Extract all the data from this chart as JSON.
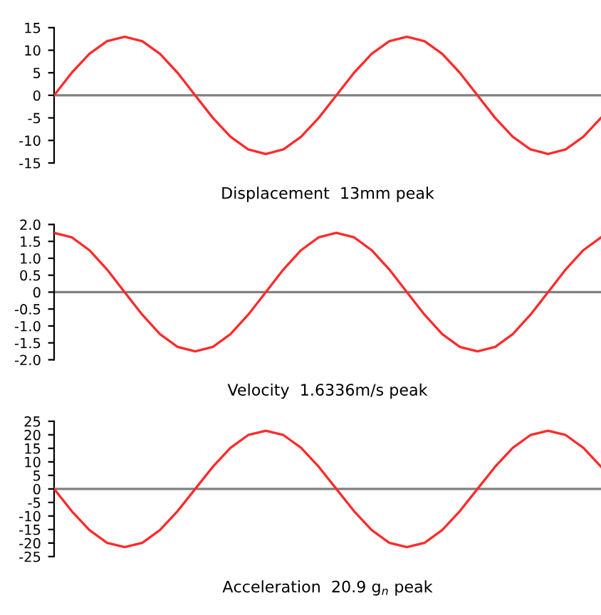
{
  "chart_data": [
    {
      "type": "line",
      "xlabel": "Displacement  13mm peak",
      "categories": [
        null,
        null,
        null,
        null,
        null,
        null,
        null,
        null,
        null,
        null,
        null,
        null,
        null,
        null,
        null,
        null,
        null,
        null,
        null,
        null,
        null,
        null,
        null,
        null,
        null,
        null,
        null,
        null,
        null,
        null,
        null,
        null
      ],
      "series": [
        {
          "color": "#ff2a2a",
          "values": [
            0,
            5.0,
            9.2,
            12.0,
            13,
            12.0,
            9.2,
            5.0,
            0,
            -5.0,
            -9.2,
            -12.0,
            -13,
            -12.0,
            -9.2,
            -5.0,
            0,
            5.0,
            9.2,
            12.0,
            13,
            12.0,
            9.2,
            5.0,
            0,
            -5.0,
            -9.2,
            -12.0,
            -13,
            -12.0,
            -9.2,
            -5.0
          ]
        }
      ],
      "ylim": [
        -15,
        15
      ],
      "yticks": [
        -15,
        -10,
        -5,
        0,
        5,
        10,
        15
      ],
      "tick_labels": "y",
      "grid": false,
      "marker": "none",
      "line_style": "solid",
      "ref_lines": [
        {
          "axis": "y",
          "value": 0,
          "color": "#808080"
        }
      ]
    },
    {
      "type": "line",
      "xlabel": "Velocity  1.6336m/s peak",
      "categories": [
        null,
        null,
        null,
        null,
        null,
        null,
        null,
        null,
        null,
        null,
        null,
        null,
        null,
        null,
        null,
        null,
        null,
        null,
        null,
        null,
        null,
        null,
        null,
        null,
        null,
        null,
        null,
        null,
        null,
        null,
        null,
        null
      ],
      "series": [
        {
          "color": "#ff2a2a",
          "values": [
            1.75,
            1.62,
            1.24,
            0.67,
            0,
            -0.67,
            -1.24,
            -1.62,
            -1.75,
            -1.62,
            -1.24,
            -0.67,
            0,
            0.67,
            1.24,
            1.62,
            1.75,
            1.62,
            1.24,
            0.67,
            0,
            -0.67,
            -1.24,
            -1.62,
            -1.75,
            -1.62,
            -1.24,
            -0.67,
            0,
            0.67,
            1.24,
            1.62
          ]
        }
      ],
      "ylim": [
        -2.0,
        2.0
      ],
      "yticks": [
        {
          "value": -2,
          "label": "-2.0"
        },
        {
          "value": -1.5,
          "label": "-1.5"
        },
        {
          "value": -1,
          "label": "-1.0"
        },
        {
          "value": -0.5,
          "label": "-0.5"
        },
        0,
        0.5,
        {
          "value": 1,
          "label": "1.0"
        },
        1.5,
        {
          "value": 2,
          "label": "2.0"
        }
      ],
      "tick_labels": "y",
      "grid": false,
      "marker": "none",
      "line_style": "solid",
      "ref_lines": [
        {
          "axis": "y",
          "value": 0,
          "color": "#808080"
        }
      ]
    },
    {
      "type": "line",
      "xlabel": "Acceleration  20.9 g$_{n}$ peak",
      "categories": [
        null,
        null,
        null,
        null,
        null,
        null,
        null,
        null,
        null,
        null,
        null,
        null,
        null,
        null,
        null,
        null,
        null,
        null,
        null,
        null,
        null,
        null,
        null,
        null,
        null,
        null,
        null,
        null,
        null,
        null,
        null,
        null
      ],
      "series": [
        {
          "color": "#ff2a2a",
          "values": [
            0,
            -8.2,
            -15.2,
            -19.9,
            -21.5,
            -19.9,
            -15.2,
            -8.2,
            0,
            8.2,
            15.2,
            19.9,
            21.5,
            19.9,
            15.2,
            8.2,
            0,
            -8.2,
            -15.2,
            -19.9,
            -21.5,
            -19.9,
            -15.2,
            -8.2,
            0,
            8.2,
            15.2,
            19.9,
            21.5,
            19.9,
            15.2,
            8.2
          ]
        }
      ],
      "ylim": [
        -25,
        25
      ],
      "yticks": [
        -25,
        -20,
        -15,
        -10,
        -5,
        0,
        5,
        10,
        15,
        20,
        25
      ],
      "tick_labels": "y",
      "grid": false,
      "marker": "none",
      "line_style": "solid",
      "ref_lines": [
        {
          "axis": "y",
          "value": 0,
          "color": "#808080"
        }
      ]
    }
  ]
}
